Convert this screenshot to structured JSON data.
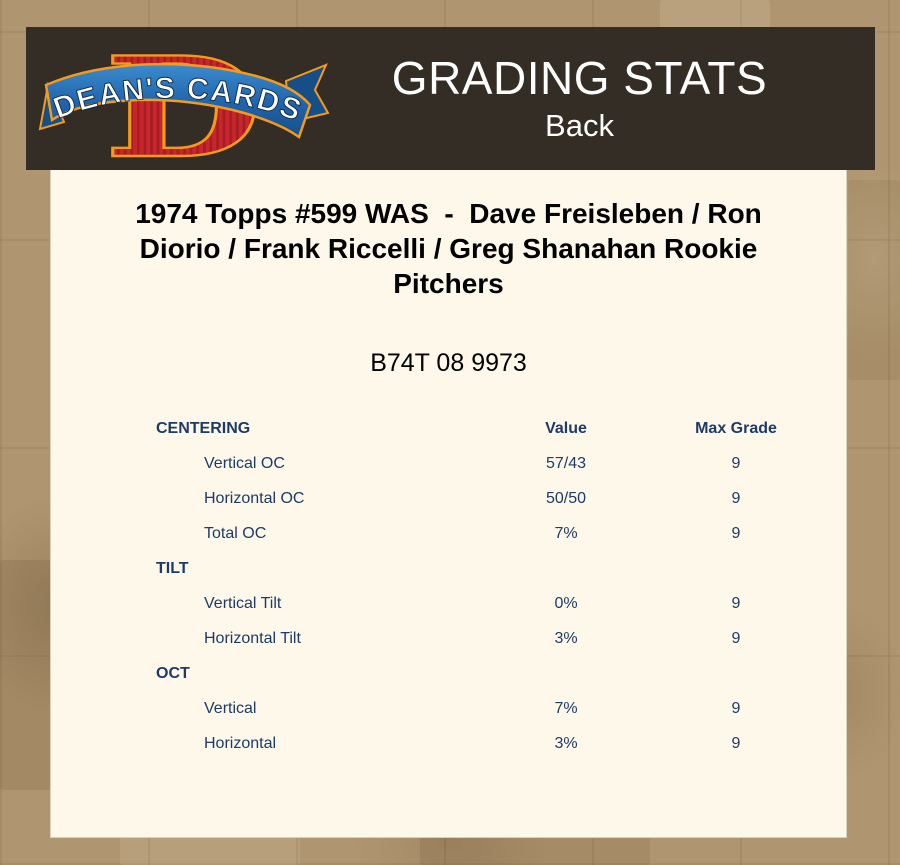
{
  "colors": {
    "background_tan": "#b09670",
    "header_bg": "#332d25",
    "content_bg": "#fdf8ea",
    "table_text": "#1d3b66",
    "header_text": "#ffffff",
    "logo_red": "#c7262c",
    "logo_red_stripe": "#a51d22",
    "logo_orange": "#f49b1e",
    "logo_blue": "#2069b2"
  },
  "header": {
    "title": "GRADING STATS",
    "subtitle": "Back",
    "logo": {
      "banner_text": "DEAN'S CARDS",
      "letter": "D"
    }
  },
  "card": {
    "title": "1974 Topps #599 WAS  -  Dave Freisleben / Ron Diorio / Frank Riccelli / Greg Shanahan Rookie Pitchers",
    "serial": "B74T 08 9973"
  },
  "stats_table": {
    "value_label": "Value",
    "max_grade_label": "Max Grade",
    "sections": [
      {
        "header": "CENTERING",
        "rows": [
          {
            "label": "Vertical OC",
            "value": "57/43",
            "max_grade": "9"
          },
          {
            "label": "Horizontal OC",
            "value": "50/50",
            "max_grade": "9"
          },
          {
            "label": "Total OC",
            "value": "7%",
            "max_grade": "9"
          }
        ]
      },
      {
        "header": "TILT",
        "rows": [
          {
            "label": "Vertical Tilt",
            "value": "0%",
            "max_grade": "9"
          },
          {
            "label": "Horizontal Tilt",
            "value": "3%",
            "max_grade": "9"
          }
        ]
      },
      {
        "header": "OCT",
        "rows": [
          {
            "label": "Vertical",
            "value": "7%",
            "max_grade": "9"
          },
          {
            "label": "Horizontal",
            "value": "3%",
            "max_grade": "9"
          }
        ]
      }
    ]
  }
}
